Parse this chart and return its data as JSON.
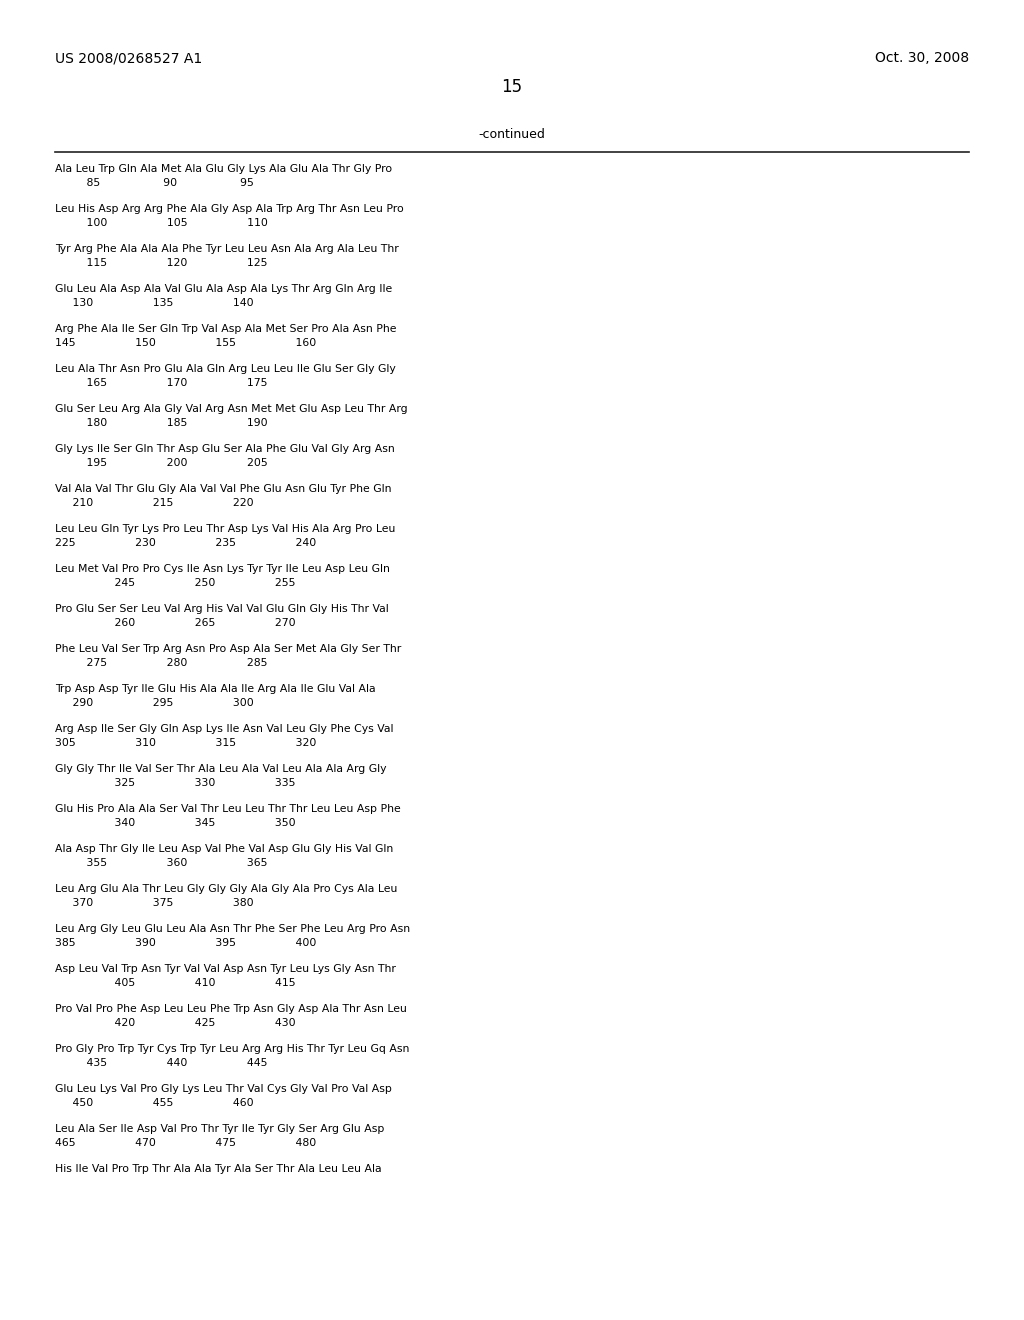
{
  "header_left": "US 2008/0268527 A1",
  "header_right": "Oct. 30, 2008",
  "page_number": "15",
  "continued_label": "-continued",
  "bg_color": "#ffffff",
  "text_color": "#000000",
  "text_lines": [
    [
      "Ala Leu Trp Gln Ala Met Ala Glu Gly Lys Ala Glu Ala Thr Gly Pro",
      "         85                  90                  95"
    ],
    [
      "Leu His Asp Arg Arg Phe Ala Gly Asp Ala Trp Arg Thr Asn Leu Pro",
      "         100                 105                 110"
    ],
    [
      "Tyr Arg Phe Ala Ala Ala Phe Tyr Leu Leu Asn Ala Arg Ala Leu Thr",
      "         115                 120                 125"
    ],
    [
      "Glu Leu Ala Asp Ala Val Glu Ala Asp Ala Lys Thr Arg Gln Arg Ile",
      "     130                 135                 140"
    ],
    [
      "Arg Phe Ala Ile Ser Gln Trp Val Asp Ala Met Ser Pro Ala Asn Phe",
      "145                 150                 155                 160"
    ],
    [
      "Leu Ala Thr Asn Pro Glu Ala Gln Arg Leu Leu Ile Glu Ser Gly Gly",
      "         165                 170                 175"
    ],
    [
      "Glu Ser Leu Arg Ala Gly Val Arg Asn Met Met Glu Asp Leu Thr Arg",
      "         180                 185                 190"
    ],
    [
      "Gly Lys Ile Ser Gln Thr Asp Glu Ser Ala Phe Glu Val Gly Arg Asn",
      "         195                 200                 205"
    ],
    [
      "Val Ala Val Thr Glu Gly Ala Val Val Phe Glu Asn Glu Tyr Phe Gln",
      "     210                 215                 220"
    ],
    [
      "Leu Leu Gln Tyr Lys Pro Leu Thr Asp Lys Val His Ala Arg Pro Leu",
      "225                 230                 235                 240"
    ],
    [
      "Leu Met Val Pro Pro Cys Ile Asn Lys Tyr Tyr Ile Leu Asp Leu Gln",
      "                 245                 250                 255"
    ],
    [
      "Pro Glu Ser Ser Leu Val Arg His Val Val Glu Gln Gly His Thr Val",
      "                 260                 265                 270"
    ],
    [
      "Phe Leu Val Ser Trp Arg Asn Pro Asp Ala Ser Met Ala Gly Ser Thr",
      "         275                 280                 285"
    ],
    [
      "Trp Asp Asp Tyr Ile Glu His Ala Ala Ile Arg Ala Ile Glu Val Ala",
      "     290                 295                 300"
    ],
    [
      "Arg Asp Ile Ser Gly Gln Asp Lys Ile Asn Val Leu Gly Phe Cys Val",
      "305                 310                 315                 320"
    ],
    [
      "Gly Gly Thr Ile Val Ser Thr Ala Leu Ala Val Leu Ala Ala Arg Gly",
      "                 325                 330                 335"
    ],
    [
      "Glu His Pro Ala Ala Ser Val Thr Leu Leu Thr Thr Leu Leu Asp Phe",
      "                 340                 345                 350"
    ],
    [
      "Ala Asp Thr Gly Ile Leu Asp Val Phe Val Asp Glu Gly His Val Gln",
      "         355                 360                 365"
    ],
    [
      "Leu Arg Glu Ala Thr Leu Gly Gly Gly Ala Gly Ala Pro Cys Ala Leu",
      "     370                 375                 380"
    ],
    [
      "Leu Arg Gly Leu Glu Leu Ala Asn Thr Phe Ser Phe Leu Arg Pro Asn",
      "385                 390                 395                 400"
    ],
    [
      "Asp Leu Val Trp Asn Tyr Val Val Asp Asn Tyr Leu Lys Gly Asn Thr",
      "                 405                 410                 415"
    ],
    [
      "Pro Val Pro Phe Asp Leu Leu Phe Trp Asn Gly Asp Ala Thr Asn Leu",
      "                 420                 425                 430"
    ],
    [
      "Pro Gly Pro Trp Tyr Cys Trp Tyr Leu Arg Arg His Thr Tyr Leu Gq Asn",
      "         435                 440                 445"
    ],
    [
      "Glu Leu Lys Val Pro Gly Lys Leu Thr Val Cys Gly Val Pro Val Asp",
      "     450                 455                 460"
    ],
    [
      "Leu Ala Ser Ile Asp Val Pro Thr Tyr Ile Tyr Gly Ser Arg Glu Asp",
      "465                 470                 475                 480"
    ],
    [
      "His Ile Val Pro Trp Thr Ala Ala Tyr Ala Ser Thr Ala Leu Leu Ala",
      ""
    ]
  ]
}
